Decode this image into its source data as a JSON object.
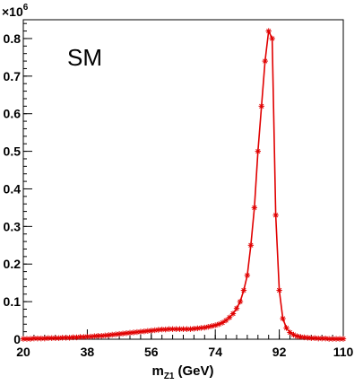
{
  "chart_data": {
    "type": "line",
    "annotation": "SM",
    "xlabel_main": "m",
    "xlabel_sub": "Z1",
    "xlabel_unit": "(GeV)",
    "y_multiplier_base": "×10",
    "y_multiplier_exp": "6",
    "xlim": [
      20,
      110
    ],
    "ylim": [
      0,
      0.85
    ],
    "x_ticks": [
      20,
      38,
      56,
      74,
      92,
      110
    ],
    "x_tick_labels": [
      "20",
      "38",
      "56",
      "74",
      "92",
      "110"
    ],
    "y_ticks": [
      0,
      0.1,
      0.2,
      0.3,
      0.4,
      0.5,
      0.6,
      0.7,
      0.8
    ],
    "y_tick_labels": [
      "0",
      "0.1",
      "0.2",
      "0.3",
      "0.4",
      "0.5",
      "0.6",
      "0.7",
      "0.8"
    ],
    "series": [
      {
        "color": "#e00000",
        "marker": "asterisk",
        "x": [
          20,
          21,
          22,
          23,
          24,
          25,
          26,
          27,
          28,
          29,
          30,
          31,
          32,
          33,
          34,
          35,
          36,
          37,
          38,
          39,
          40,
          41,
          42,
          43,
          44,
          45,
          46,
          47,
          48,
          49,
          50,
          51,
          52,
          53,
          54,
          55,
          56,
          57,
          58,
          59,
          60,
          61,
          62,
          63,
          64,
          65,
          66,
          67,
          68,
          69,
          70,
          71,
          72,
          73,
          74,
          75,
          76,
          77,
          78,
          79,
          80,
          81,
          82,
          83,
          84,
          85,
          86,
          87,
          88,
          89,
          90,
          91,
          92,
          93,
          94,
          95,
          96,
          97,
          98,
          99,
          100,
          101,
          102,
          103,
          104,
          105,
          106,
          107,
          108,
          109,
          110
        ],
        "y": [
          0.001,
          0.001,
          0.001,
          0.002,
          0.002,
          0.002,
          0.002,
          0.003,
          0.003,
          0.003,
          0.003,
          0.004,
          0.004,
          0.004,
          0.005,
          0.005,
          0.006,
          0.006,
          0.007,
          0.007,
          0.008,
          0.009,
          0.009,
          0.01,
          0.011,
          0.012,
          0.013,
          0.014,
          0.015,
          0.016,
          0.017,
          0.018,
          0.019,
          0.02,
          0.021,
          0.022,
          0.023,
          0.024,
          0.025,
          0.026,
          0.026,
          0.027,
          0.027,
          0.027,
          0.027,
          0.027,
          0.027,
          0.027,
          0.028,
          0.029,
          0.03,
          0.031,
          0.033,
          0.035,
          0.037,
          0.04,
          0.044,
          0.05,
          0.058,
          0.068,
          0.082,
          0.1,
          0.13,
          0.17,
          0.25,
          0.35,
          0.5,
          0.62,
          0.74,
          0.82,
          0.8,
          0.33,
          0.13,
          0.055,
          0.03,
          0.018,
          0.012,
          0.008,
          0.006,
          0.005,
          0.004,
          0.003,
          0.003,
          0.002,
          0.002,
          0.002,
          0.001,
          0.001,
          0.001,
          0.001,
          0.001
        ]
      }
    ]
  }
}
